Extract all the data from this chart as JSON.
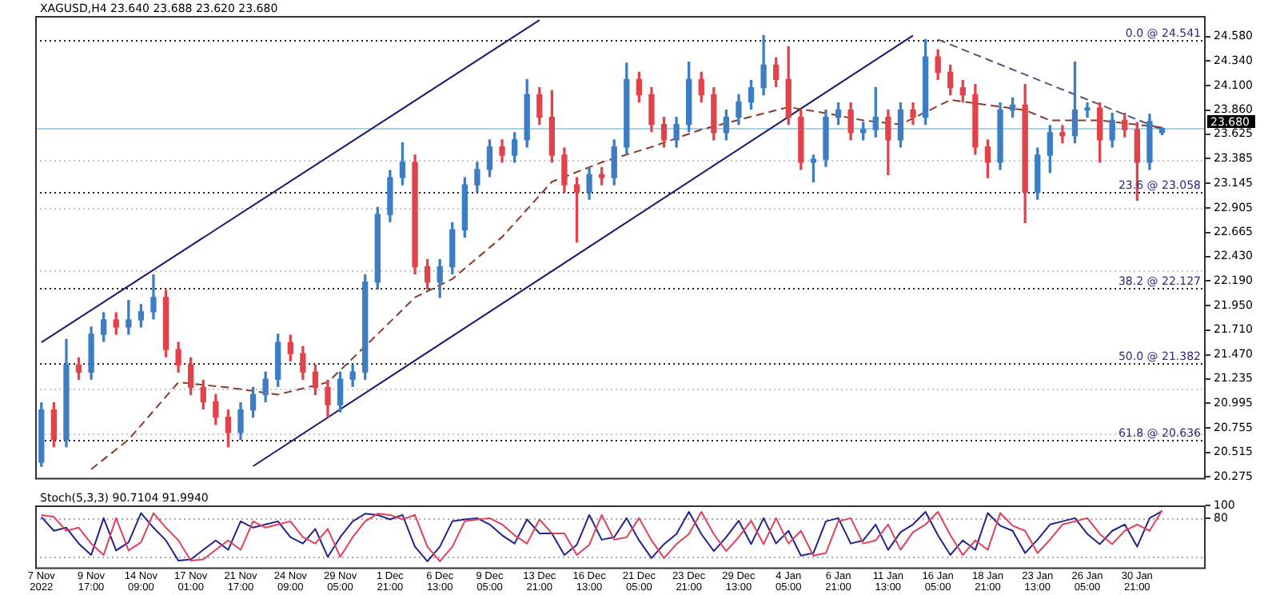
{
  "chart_data": [
    {
      "type": "candlestick",
      "title": "XAGUSD,H4 23.640 23.688 23.620 23.680",
      "ohlc": [
        [
          20.42,
          21.0,
          20.38,
          20.93
        ],
        [
          20.93,
          21.0,
          20.57,
          20.64
        ],
        [
          20.64,
          21.62,
          20.57,
          21.37
        ],
        [
          21.37,
          21.44,
          21.23,
          21.3
        ],
        [
          21.3,
          21.74,
          21.23,
          21.67
        ],
        [
          21.67,
          21.88,
          21.6,
          21.81
        ],
        [
          21.81,
          21.88,
          21.67,
          21.74
        ],
        [
          21.74,
          22.0,
          21.67,
          21.81
        ],
        [
          21.81,
          21.96,
          21.74,
          21.89
        ],
        [
          21.89,
          22.25,
          21.82,
          22.03
        ],
        [
          22.03,
          22.1,
          21.45,
          21.52
        ],
        [
          21.52,
          21.59,
          21.3,
          21.37
        ],
        [
          21.37,
          21.44,
          21.08,
          21.15
        ],
        [
          21.15,
          21.22,
          20.94,
          21.01
        ],
        [
          21.01,
          21.08,
          20.79,
          20.86
        ],
        [
          20.86,
          20.93,
          20.57,
          20.71
        ],
        [
          20.71,
          21.0,
          20.64,
          20.93
        ],
        [
          20.93,
          21.15,
          20.86,
          21.08
        ],
        [
          21.08,
          21.3,
          21.01,
          21.23
        ],
        [
          21.23,
          21.67,
          21.16,
          21.59
        ],
        [
          21.59,
          21.66,
          21.41,
          21.48
        ],
        [
          21.48,
          21.55,
          21.23,
          21.3
        ],
        [
          21.3,
          21.37,
          21.08,
          21.15
        ],
        [
          21.15,
          21.22,
          20.86,
          20.98
        ],
        [
          20.98,
          21.3,
          20.91,
          21.23
        ],
        [
          21.23,
          21.37,
          21.16,
          21.3
        ],
        [
          21.3,
          22.25,
          21.23,
          22.18
        ],
        [
          22.18,
          22.91,
          22.11,
          22.84
        ],
        [
          22.84,
          23.27,
          22.77,
          23.2
        ],
        [
          23.2,
          23.54,
          23.13,
          23.35
        ],
        [
          23.35,
          23.42,
          22.26,
          22.33
        ],
        [
          22.33,
          22.4,
          22.11,
          22.18
        ],
        [
          22.18,
          22.4,
          22.03,
          22.33
        ],
        [
          22.33,
          22.76,
          22.26,
          22.69
        ],
        [
          22.69,
          23.2,
          22.62,
          23.13
        ],
        [
          23.13,
          23.35,
          23.06,
          23.28
        ],
        [
          23.28,
          23.57,
          23.21,
          23.5
        ],
        [
          23.5,
          23.57,
          23.35,
          23.42
        ],
        [
          23.42,
          23.64,
          23.35,
          23.57
        ],
        [
          23.57,
          24.16,
          23.5,
          24.01
        ],
        [
          24.01,
          24.08,
          23.72,
          23.79
        ],
        [
          23.79,
          24.05,
          23.35,
          23.42
        ],
        [
          23.42,
          23.49,
          23.06,
          23.13
        ],
        [
          23.13,
          23.2,
          22.57,
          23.06
        ],
        [
          23.06,
          23.3,
          22.99,
          23.23
        ],
        [
          23.23,
          23.3,
          23.13,
          23.2
        ],
        [
          23.2,
          23.57,
          23.13,
          23.5
        ],
        [
          23.5,
          24.32,
          23.43,
          24.16
        ],
        [
          24.16,
          24.23,
          23.94,
          24.01
        ],
        [
          24.01,
          24.08,
          23.65,
          23.72
        ],
        [
          23.72,
          23.79,
          23.5,
          23.57
        ],
        [
          23.57,
          23.79,
          23.5,
          23.72
        ],
        [
          23.72,
          24.33,
          23.65,
          24.16
        ],
        [
          24.16,
          24.23,
          23.94,
          24.01
        ],
        [
          24.01,
          24.08,
          23.57,
          23.64
        ],
        [
          23.64,
          23.86,
          23.57,
          23.79
        ],
        [
          23.79,
          24.01,
          23.72,
          23.94
        ],
        [
          23.94,
          24.15,
          23.87,
          24.08
        ],
        [
          24.08,
          24.59,
          24.01,
          24.3
        ],
        [
          24.3,
          24.37,
          24.09,
          24.16
        ],
        [
          24.16,
          24.48,
          23.72,
          23.79
        ],
        [
          23.79,
          23.86,
          23.28,
          23.35
        ],
        [
          23.35,
          23.42,
          23.16,
          23.38
        ],
        [
          23.38,
          23.86,
          23.31,
          23.79
        ],
        [
          23.79,
          23.93,
          23.72,
          23.86
        ],
        [
          23.86,
          23.93,
          23.57,
          23.64
        ],
        [
          23.64,
          23.74,
          23.57,
          23.67
        ],
        [
          23.67,
          24.08,
          23.6,
          23.79
        ],
        [
          23.79,
          23.86,
          23.23,
          23.57
        ],
        [
          23.57,
          23.93,
          23.5,
          23.86
        ],
        [
          23.86,
          23.93,
          23.72,
          23.79
        ],
        [
          23.79,
          24.55,
          23.72,
          24.38
        ],
        [
          24.38,
          24.45,
          24.16,
          24.23
        ],
        [
          24.23,
          24.3,
          24.01,
          24.08
        ],
        [
          24.08,
          24.15,
          23.94,
          24.01
        ],
        [
          24.01,
          24.11,
          23.43,
          23.5
        ],
        [
          23.5,
          23.57,
          23.2,
          23.35
        ],
        [
          23.35,
          23.93,
          23.28,
          23.86
        ],
        [
          23.86,
          23.98,
          23.79,
          23.91
        ],
        [
          23.91,
          24.11,
          22.76,
          23.06
        ],
        [
          23.06,
          23.49,
          22.99,
          23.42
        ],
        [
          23.42,
          23.71,
          23.25,
          23.64
        ],
        [
          23.64,
          23.71,
          23.54,
          23.61
        ],
        [
          23.61,
          24.33,
          23.54,
          23.86
        ],
        [
          23.86,
          23.93,
          23.79,
          23.88
        ],
        [
          23.88,
          23.93,
          23.35,
          23.57
        ],
        [
          23.57,
          23.83,
          23.5,
          23.76
        ],
        [
          23.76,
          23.83,
          23.6,
          23.67
        ],
        [
          23.67,
          23.74,
          22.98,
          23.35
        ],
        [
          23.35,
          23.82,
          23.28,
          23.75
        ],
        [
          23.64,
          23.688,
          23.62,
          23.68
        ],
        null,
        null,
        null
      ],
      "colors": [
        "#3c7dc4",
        "#e2434b",
        "#3c7dc4",
        "#e2434b",
        "#3c7dc4",
        "#3c7dc4",
        "#e2434b",
        "#3c7dc4",
        "#3c7dc4",
        "#3c7dc4",
        "#e2434b",
        "#e2434b",
        "#e2434b",
        "#e2434b",
        "#e2434b",
        "#e2434b",
        "#3c7dc4",
        "#3c7dc4",
        "#3c7dc4",
        "#3c7dc4",
        "#e2434b",
        "#e2434b",
        "#e2434b",
        "#e2434b",
        "#3c7dc4",
        "#3c7dc4",
        "#3c7dc4",
        "#3c7dc4",
        "#3c7dc4",
        "#3c7dc4",
        "#e2434b",
        "#e2434b",
        "#3c7dc4",
        "#3c7dc4",
        "#3c7dc4",
        "#3c7dc4",
        "#3c7dc4",
        "#e2434b",
        "#3c7dc4",
        "#3c7dc4",
        "#e2434b",
        "#e2434b",
        "#e2434b",
        "#e2434b",
        "#3c7dc4",
        "#e2434b",
        "#3c7dc4",
        "#3c7dc4",
        "#e2434b",
        "#e2434b",
        "#e2434b",
        "#3c7dc4",
        "#3c7dc4",
        "#e2434b",
        "#e2434b",
        "#3c7dc4",
        "#3c7dc4",
        "#3c7dc4",
        "#3c7dc4",
        "#e2434b",
        "#e2434b",
        "#e2434b",
        "#3c7dc4",
        "#3c7dc4",
        "#3c7dc4",
        "#e2434b",
        "#3c7dc4",
        "#3c7dc4",
        "#e2434b",
        "#3c7dc4",
        "#e2434b",
        "#3c7dc4",
        "#e2434b",
        "#e2434b",
        "#e2434b",
        "#e2434b",
        "#e2434b",
        "#3c7dc4",
        "#3c7dc4",
        "#e2434b",
        "#3c7dc4",
        "#3c7dc4",
        "#e2434b",
        "#3c7dc4",
        "#3c7dc4",
        "#e2434b",
        "#3c7dc4",
        "#e2434b",
        "#e2434b",
        "#3c7dc4",
        "#3c7dc4",
        null,
        null,
        null
      ],
      "series": [
        {
          "type": "line",
          "color": "#8b3a2a",
          "line_style": "dashed",
          "values": [
            null,
            null,
            null,
            null,
            20.35,
            null,
            null,
            20.64,
            null,
            null,
            null,
            21.2,
            null,
            null,
            null,
            21.15,
            null,
            null,
            null,
            21.08,
            null,
            null,
            null,
            21.2,
            null,
            null,
            null,
            21.67,
            null,
            null,
            22.03,
            null,
            null,
            22.21,
            null,
            null,
            null,
            22.62,
            null,
            null,
            null,
            23.16,
            null,
            null,
            null,
            23.35,
            null,
            null,
            null,
            23.5,
            null,
            null,
            null,
            23.67,
            null,
            null,
            null,
            null,
            null,
            null,
            23.89,
            null,
            null,
            23.83,
            null,
            null,
            23.76,
            null,
            null,
            23.72,
            null,
            null,
            null,
            23.96,
            null,
            null,
            23.91,
            null,
            null,
            23.86,
            null,
            23.76,
            null,
            null,
            null,
            23.76,
            null,
            null,
            null,
            null,
            23.69,
            null,
            null,
            null
          ]
        },
        {
          "type": "line",
          "color": "#1c1c6e",
          "line_style": "solid",
          "values": [
            21.59,
            null,
            null,
            null,
            null,
            null,
            null,
            null,
            null,
            null,
            null,
            null,
            null,
            null,
            null,
            null,
            null,
            null,
            null,
            null,
            null,
            null,
            null,
            null,
            null,
            null,
            null,
            null,
            null,
            null,
            null,
            null,
            null,
            null,
            null,
            null,
            null,
            null,
            null,
            null,
            24.74,
            null,
            null,
            null,
            null,
            null,
            null,
            null,
            null,
            null,
            null,
            null,
            null,
            null,
            null,
            null,
            null,
            null,
            null,
            null,
            null,
            null,
            null,
            null,
            null,
            null,
            null,
            null,
            null,
            null,
            null,
            null,
            null,
            null,
            null,
            null,
            null,
            null,
            null,
            null,
            null,
            null,
            null,
            null,
            null,
            null,
            null,
            null,
            null,
            null,
            null,
            null,
            null,
            null
          ]
        },
        {
          "type": "line",
          "color": "#1c1c6e",
          "line_style": "solid",
          "values": [
            null,
            null,
            null,
            null,
            null,
            null,
            null,
            null,
            null,
            null,
            null,
            null,
            null,
            null,
            null,
            null,
            null,
            20.38,
            null,
            null,
            null,
            null,
            null,
            null,
            null,
            null,
            null,
            null,
            null,
            null,
            null,
            null,
            null,
            null,
            null,
            null,
            null,
            null,
            null,
            null,
            null,
            null,
            null,
            null,
            null,
            null,
            null,
            null,
            null,
            null,
            null,
            null,
            null,
            null,
            null,
            null,
            null,
            null,
            null,
            null,
            null,
            null,
            null,
            null,
            null,
            null,
            null,
            null,
            null,
            null,
            24.59,
            null,
            null,
            null,
            null,
            null,
            null,
            null,
            null,
            null,
            null,
            null,
            null,
            null,
            null,
            null,
            null,
            null,
            null,
            null,
            null,
            null,
            null,
            null
          ]
        },
        {
          "type": "line",
          "color": "#55557a",
          "line_style": "dashed",
          "values": [
            null,
            null,
            null,
            null,
            null,
            null,
            null,
            null,
            null,
            null,
            null,
            null,
            null,
            null,
            null,
            null,
            null,
            null,
            null,
            null,
            null,
            null,
            null,
            null,
            null,
            null,
            null,
            null,
            null,
            null,
            null,
            null,
            null,
            null,
            null,
            null,
            null,
            null,
            null,
            null,
            null,
            null,
            null,
            null,
            null,
            null,
            null,
            null,
            null,
            null,
            null,
            null,
            null,
            null,
            null,
            null,
            null,
            null,
            null,
            null,
            null,
            null,
            null,
            null,
            null,
            null,
            null,
            null,
            null,
            null,
            null,
            null,
            24.55,
            null,
            null,
            null,
            null,
            null,
            null,
            null,
            null,
            null,
            null,
            null,
            null,
            null,
            null,
            null,
            null,
            null,
            23.67,
            null,
            null,
            null
          ]
        }
      ],
      "ref_lines": [
        {
          "axis": "y",
          "value": 24.541,
          "label": "0.0 @ 24.541",
          "color": "#222222",
          "line_style": "dotted"
        },
        {
          "axis": "y",
          "value": 23.058,
          "label": "23.6 @ 23.058",
          "color": "#222222",
          "line_style": "dotted"
        },
        {
          "axis": "y",
          "value": 22.127,
          "label": "38.2 @ 22.127",
          "color": "#222222",
          "line_style": "dotted"
        },
        {
          "axis": "y",
          "value": 21.382,
          "label": "50.0 @ 21.382",
          "color": "#222222",
          "line_style": "dotted"
        },
        {
          "axis": "y",
          "value": 20.636,
          "label": "61.8 @ 20.636",
          "color": "#222222",
          "line_style": "dotted"
        },
        {
          "axis": "y",
          "value": 23.38,
          "color": "#c8c8c8",
          "line_style": "dotted"
        },
        {
          "axis": "y",
          "value": 22.9,
          "color": "#c8c8c8",
          "line_style": "dotted"
        },
        {
          "axis": "y",
          "value": 22.3,
          "color": "#c8c8c8",
          "line_style": "dotted"
        },
        {
          "axis": "y",
          "value": 21.14,
          "color": "#c8c8c8",
          "line_style": "dotted"
        },
        {
          "axis": "y",
          "value": 20.7,
          "color": "#c8c8c8",
          "line_style": "dotted"
        },
        {
          "axis": "y",
          "value": 23.68,
          "label": "23.680",
          "color": "#a9d3e3",
          "line_style": "solid"
        }
      ],
      "ylim": [
        20.25,
        24.78
      ],
      "yticks": [
        {
          "value": 24.58,
          "label": "24.580"
        },
        {
          "value": 24.34,
          "label": "24.340"
        },
        {
          "value": 24.1,
          "label": "24.100"
        },
        {
          "value": 23.86,
          "label": "23.860"
        },
        23.625,
        23.385,
        23.145,
        22.905,
        22.665,
        {
          "value": 22.43,
          "label": "22.430"
        },
        {
          "value": 22.19,
          "label": "22.190"
        },
        {
          "value": 21.95,
          "label": "21.950"
        },
        {
          "value": 21.71,
          "label": "21.710"
        },
        {
          "value": 21.47,
          "label": "21.470"
        },
        21.235,
        20.995,
        20.755,
        20.515,
        20.275
      ],
      "tick_labels": "y",
      "grid": false,
      "legend": false
    },
    {
      "type": "line",
      "title": "Stoch(5,3,3) 90.7104 91.9940",
      "categories": [
        "7 Nov 2022",
        null,
        null,
        null,
        "9 Nov 17:00",
        null,
        null,
        null,
        "14 Nov 09:00",
        null,
        null,
        null,
        "17 Nov 01:00",
        null,
        null,
        null,
        "21 Nov 17:00",
        null,
        null,
        null,
        "24 Nov 09:00",
        null,
        null,
        null,
        "29 Nov 05:00",
        null,
        null,
        null,
        "1 Dec 21:00",
        null,
        null,
        null,
        "6 Dec 13:00",
        null,
        null,
        null,
        "9 Dec 05:00",
        null,
        null,
        null,
        "13 Dec 21:00",
        null,
        null,
        null,
        "16 Dec 13:00",
        null,
        null,
        null,
        "21 Dec 05:00",
        null,
        null,
        null,
        "23 Dec 21:00",
        null,
        null,
        null,
        "29 Dec 13:00",
        null,
        null,
        null,
        "4 Jan 05:00",
        null,
        null,
        null,
        "6 Jan 21:00",
        null,
        null,
        null,
        "11 Jan 13:00",
        null,
        null,
        null,
        "16 Jan 05:00",
        null,
        null,
        null,
        "18 Jan 21:00",
        null,
        null,
        null,
        "23 Jan 13:00",
        null,
        null,
        null,
        "26 Jan 05:00",
        null,
        null,
        null,
        "30 Jan 21:00",
        null,
        null,
        null,
        null,
        null
      ],
      "series": [
        {
          "color": "#e0405a",
          "values": [
            85,
            82,
            60,
            65,
            40,
            22,
            80,
            29,
            42,
            88,
            65,
            45,
            13,
            15,
            30,
            45,
            30,
            75,
            65,
            70,
            75,
            50,
            40,
            63,
            19,
            50,
            75,
            87,
            85,
            78,
            85,
            35,
            12,
            35,
            75,
            78,
            80,
            70,
            53,
            40,
            78,
            56,
            56,
            22,
            38,
            85,
            46,
            50,
            80,
            45,
            17,
            39,
            55,
            90,
            55,
            28,
            50,
            76,
            39,
            80,
            40,
            60,
            21,
            25,
            75,
            80,
            40,
            45,
            70,
            30,
            58,
            70,
            90,
            53,
            22,
            45,
            30,
            88,
            68,
            60,
            25,
            46,
            70,
            75,
            80,
            55,
            39,
            60,
            70,
            60,
            92,
            null,
            null,
            null
          ]
        },
        {
          "color": "#23238c",
          "values": [
            82,
            60,
            65,
            40,
            22,
            80,
            29,
            42,
            88,
            65,
            45,
            13,
            15,
            30,
            45,
            30,
            75,
            65,
            70,
            75,
            50,
            40,
            63,
            19,
            50,
            75,
            87,
            85,
            78,
            85,
            35,
            12,
            35,
            75,
            78,
            80,
            70,
            53,
            40,
            78,
            56,
            56,
            22,
            38,
            85,
            46,
            50,
            80,
            45,
            17,
            39,
            55,
            90,
            55,
            28,
            50,
            76,
            39,
            80,
            40,
            60,
            21,
            25,
            75,
            80,
            40,
            45,
            70,
            30,
            58,
            70,
            90,
            53,
            22,
            45,
            30,
            88,
            68,
            60,
            25,
            46,
            70,
            75,
            80,
            55,
            39,
            60,
            70,
            35,
            80,
            91,
            null,
            null,
            null
          ]
        }
      ],
      "ref_lines": [
        {
          "axis": "y",
          "value": 80,
          "color": "#aaaaaa",
          "line_style": "dotted"
        },
        {
          "axis": "y",
          "value": 20,
          "color": "#aaaaaa",
          "line_style": "dotted"
        }
      ],
      "ylim": [
        0,
        100
      ],
      "yticks": [
        80,
        100
      ],
      "grid": false,
      "legend": false
    }
  ]
}
